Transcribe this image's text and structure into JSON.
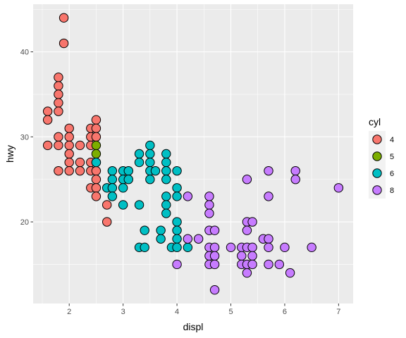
{
  "chart_data": {
    "type": "scatter",
    "title": "",
    "xlabel": "displ",
    "ylabel": "hwy",
    "xlim": [
      1.33,
      7.27
    ],
    "ylim": [
      10.4,
      45.6
    ],
    "x_ticks": [
      2,
      3,
      4,
      5,
      6,
      7
    ],
    "y_ticks": [
      20,
      30,
      40
    ],
    "grid": true,
    "legend": {
      "title": "cyl",
      "position": "right",
      "entries": [
        {
          "label": "4",
          "color": "#F8766D"
        },
        {
          "label": "5",
          "color": "#7CAE00"
        },
        {
          "label": "6",
          "color": "#00BFC4"
        },
        {
          "label": "8",
          "color": "#C77CFF"
        }
      ]
    },
    "series": [
      {
        "name": "4",
        "color": "#F8766D",
        "points": [
          [
            1.6,
            33
          ],
          [
            1.6,
            32
          ],
          [
            1.6,
            29
          ],
          [
            1.8,
            37
          ],
          [
            1.8,
            36
          ],
          [
            1.8,
            35
          ],
          [
            1.8,
            34
          ],
          [
            1.8,
            33
          ],
          [
            1.8,
            30
          ],
          [
            1.8,
            29
          ],
          [
            1.8,
            26
          ],
          [
            1.9,
            44
          ],
          [
            1.9,
            41
          ],
          [
            2.0,
            31
          ],
          [
            2.0,
            30
          ],
          [
            2.0,
            29
          ],
          [
            2.0,
            28
          ],
          [
            2.0,
            27
          ],
          [
            2.0,
            26
          ],
          [
            2.2,
            29
          ],
          [
            2.2,
            27
          ],
          [
            2.2,
            26
          ],
          [
            2.4,
            31
          ],
          [
            2.4,
            30
          ],
          [
            2.4,
            29
          ],
          [
            2.4,
            27
          ],
          [
            2.4,
            26
          ],
          [
            2.4,
            24
          ],
          [
            2.5,
            32
          ],
          [
            2.5,
            31
          ],
          [
            2.5,
            30
          ],
          [
            2.5,
            27
          ],
          [
            2.5,
            26
          ],
          [
            2.5,
            25
          ],
          [
            2.5,
            24
          ],
          [
            2.5,
            23
          ],
          [
            2.7,
            22
          ],
          [
            2.7,
            20
          ]
        ]
      },
      {
        "name": "5",
        "color": "#7CAE00",
        "points": [
          [
            2.5,
            29
          ],
          [
            2.5,
            28
          ]
        ]
      },
      {
        "name": "6",
        "color": "#00BFC4",
        "points": [
          [
            2.5,
            27
          ],
          [
            2.7,
            24
          ],
          [
            2.8,
            26
          ],
          [
            2.8,
            25
          ],
          [
            2.8,
            24
          ],
          [
            2.8,
            23
          ],
          [
            3.0,
            26
          ],
          [
            3.0,
            25
          ],
          [
            3.0,
            24
          ],
          [
            3.0,
            22
          ],
          [
            3.1,
            26
          ],
          [
            3.1,
            25
          ],
          [
            3.3,
            28
          ],
          [
            3.3,
            27
          ],
          [
            3.3,
            22
          ],
          [
            3.3,
            17
          ],
          [
            3.4,
            19
          ],
          [
            3.4,
            17
          ],
          [
            3.5,
            29
          ],
          [
            3.5,
            28
          ],
          [
            3.5,
            27
          ],
          [
            3.5,
            26
          ],
          [
            3.5,
            25
          ],
          [
            3.6,
            26
          ],
          [
            3.7,
            19
          ],
          [
            3.7,
            18
          ],
          [
            3.8,
            28
          ],
          [
            3.8,
            27
          ],
          [
            3.8,
            26
          ],
          [
            3.8,
            25
          ],
          [
            3.8,
            23
          ],
          [
            3.8,
            22
          ],
          [
            3.8,
            21
          ],
          [
            3.9,
            17
          ],
          [
            4.0,
            26
          ],
          [
            4.0,
            24
          ],
          [
            4.0,
            23
          ],
          [
            4.0,
            20
          ],
          [
            4.0,
            19
          ],
          [
            4.0,
            18
          ],
          [
            4.0,
            17
          ],
          [
            4.2,
            17
          ]
        ]
      },
      {
        "name": "8",
        "color": "#C77CFF",
        "points": [
          [
            4.0,
            15
          ],
          [
            4.2,
            23
          ],
          [
            4.2,
            18
          ],
          [
            4.4,
            18
          ],
          [
            4.6,
            23
          ],
          [
            4.6,
            22
          ],
          [
            4.6,
            21
          ],
          [
            4.6,
            19
          ],
          [
            4.6,
            17
          ],
          [
            4.6,
            16
          ],
          [
            4.6,
            15
          ],
          [
            4.7,
            19
          ],
          [
            4.7,
            17
          ],
          [
            4.7,
            16
          ],
          [
            4.7,
            15
          ],
          [
            4.7,
            12
          ],
          [
            5.0,
            17
          ],
          [
            5.2,
            17
          ],
          [
            5.2,
            16
          ],
          [
            5.2,
            15
          ],
          [
            5.3,
            25
          ],
          [
            5.3,
            20
          ],
          [
            5.3,
            19
          ],
          [
            5.3,
            17
          ],
          [
            5.3,
            15
          ],
          [
            5.3,
            14
          ],
          [
            5.4,
            20
          ],
          [
            5.4,
            17
          ],
          [
            5.4,
            16
          ],
          [
            5.4,
            15
          ],
          [
            5.6,
            18
          ],
          [
            5.7,
            26
          ],
          [
            5.7,
            23
          ],
          [
            5.7,
            18
          ],
          [
            5.7,
            17
          ],
          [
            5.7,
            15
          ],
          [
            5.9,
            15
          ],
          [
            6.0,
            17
          ],
          [
            6.1,
            14
          ],
          [
            6.2,
            26
          ],
          [
            6.2,
            25
          ],
          [
            6.5,
            17
          ],
          [
            7.0,
            24
          ]
        ]
      }
    ]
  }
}
